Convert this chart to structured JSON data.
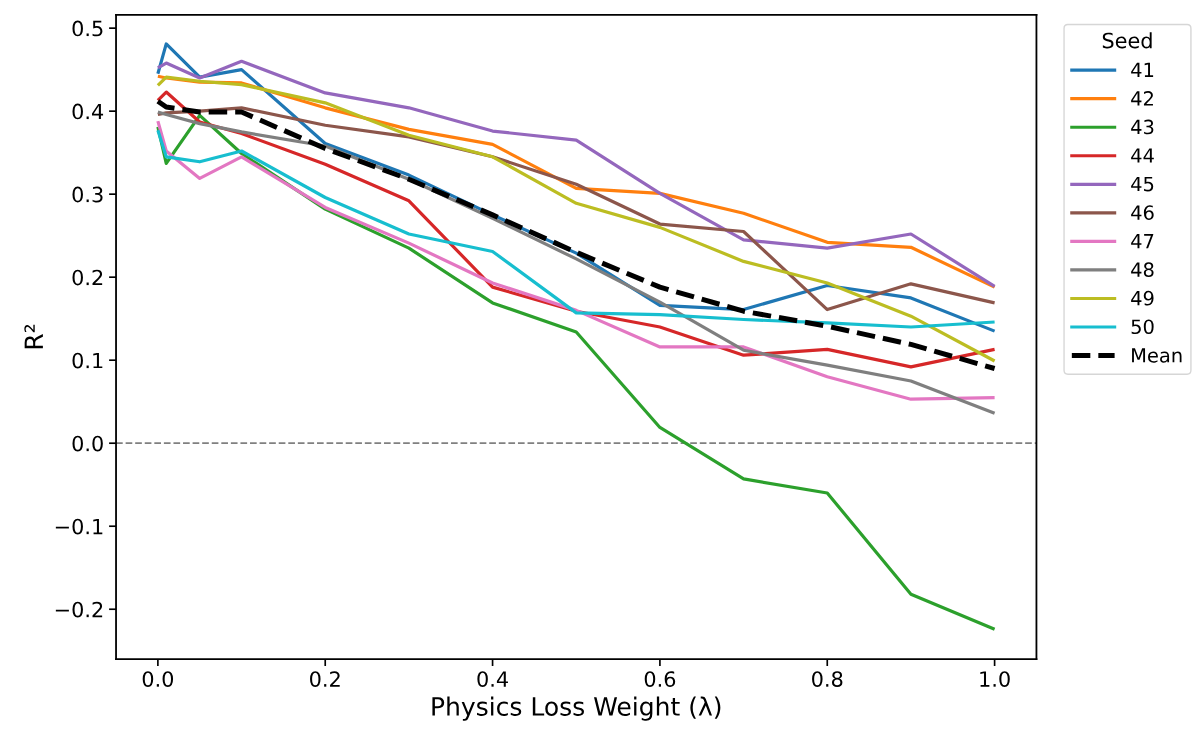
{
  "chart_data": {
    "type": "line",
    "xlabel": "Physics Loss Weight (λ)",
    "ylabel": "R²",
    "legend_title": "Seed",
    "legend": "top right",
    "grid": false,
    "marker": "none",
    "x": [
      0.0,
      0.01,
      0.05,
      0.1,
      0.2,
      0.3,
      0.4,
      0.5,
      0.6,
      0.7,
      0.8,
      0.9,
      1.0
    ],
    "xlim": [
      -0.05,
      1.05
    ],
    "ylim": [
      -0.26,
      0.516
    ],
    "xticks": [
      {
        "value": 0.0,
        "label": "0.0"
      },
      {
        "value": 0.2,
        "label": "0.2"
      },
      {
        "value": 0.4,
        "label": "0.4"
      },
      {
        "value": 0.6,
        "label": "0.6"
      },
      {
        "value": 0.8,
        "label": "0.8"
      },
      {
        "value": 1.0,
        "label": "1.0"
      }
    ],
    "yticks": [
      {
        "value": -0.2,
        "label": "−0.2"
      },
      {
        "value": -0.1,
        "label": "−0.1"
      },
      {
        "value": 0.0,
        "label": "0.0"
      },
      0.1,
      0.2,
      0.3,
      0.4,
      0.5
    ],
    "ref_lines": [
      {
        "axis": "y",
        "value": 0.0,
        "label": null,
        "color": "#808080",
        "line_style": "dashed"
      }
    ],
    "series": [
      {
        "name": "41",
        "color": "#1f77b4",
        "line_style": "solid",
        "values": [
          0.445,
          0.481,
          0.441,
          0.45,
          0.361,
          0.323,
          0.275,
          0.229,
          0.166,
          0.161,
          0.19,
          0.175,
          0.135
        ]
      },
      {
        "name": "42",
        "color": "#ff7f0e",
        "line_style": "solid",
        "values": [
          0.442,
          0.44,
          0.435,
          0.434,
          0.404,
          0.378,
          0.36,
          0.307,
          0.301,
          0.277,
          0.242,
          0.236,
          0.188
        ]
      },
      {
        "name": "43",
        "color": "#2ca02c",
        "line_style": "solid",
        "values": [
          0.381,
          0.337,
          0.395,
          0.349,
          0.282,
          0.235,
          0.169,
          0.134,
          0.019,
          -0.043,
          -0.06,
          -0.182,
          -0.224
        ]
      },
      {
        "name": "44",
        "color": "#d62728",
        "line_style": "solid",
        "values": [
          0.413,
          0.423,
          0.387,
          0.373,
          0.336,
          0.292,
          0.188,
          0.159,
          0.14,
          0.106,
          0.113,
          0.092,
          0.113
        ]
      },
      {
        "name": "45",
        "color": "#9467bd",
        "line_style": "solid",
        "values": [
          0.452,
          0.458,
          0.44,
          0.46,
          0.422,
          0.404,
          0.376,
          0.365,
          0.301,
          0.245,
          0.235,
          0.252,
          0.189
        ]
      },
      {
        "name": "46",
        "color": "#8c564b",
        "line_style": "solid",
        "values": [
          0.396,
          0.398,
          0.4,
          0.404,
          0.383,
          0.369,
          0.345,
          0.312,
          0.264,
          0.255,
          0.161,
          0.192,
          0.169
        ]
      },
      {
        "name": "47",
        "color": "#e377c2",
        "line_style": "solid",
        "values": [
          0.388,
          0.352,
          0.319,
          0.345,
          0.284,
          0.241,
          0.193,
          0.16,
          0.116,
          0.116,
          0.08,
          0.053,
          0.055
        ]
      },
      {
        "name": "48",
        "color": "#7f7f7f",
        "line_style": "solid",
        "values": [
          0.399,
          0.396,
          0.385,
          0.375,
          0.358,
          0.318,
          0.271,
          0.222,
          0.17,
          0.112,
          0.094,
          0.075,
          0.036
        ]
      },
      {
        "name": "49",
        "color": "#bcbd22",
        "line_style": "solid",
        "values": [
          0.431,
          0.441,
          0.436,
          0.432,
          0.41,
          0.371,
          0.345,
          0.289,
          0.26,
          0.219,
          0.193,
          0.153,
          0.099
        ]
      },
      {
        "name": "50",
        "color": "#17becf",
        "line_style": "solid",
        "values": [
          0.377,
          0.345,
          0.339,
          0.352,
          0.296,
          0.252,
          0.231,
          0.157,
          0.155,
          0.149,
          0.145,
          0.14,
          0.146
        ]
      },
      {
        "name": "Mean",
        "color": "#000000",
        "line_style": "dashed",
        "values": [
          0.412,
          0.405,
          0.399,
          0.399,
          0.355,
          0.318,
          0.275,
          0.23,
          0.188,
          0.159,
          0.141,
          0.119,
          0.09
        ]
      }
    ]
  }
}
